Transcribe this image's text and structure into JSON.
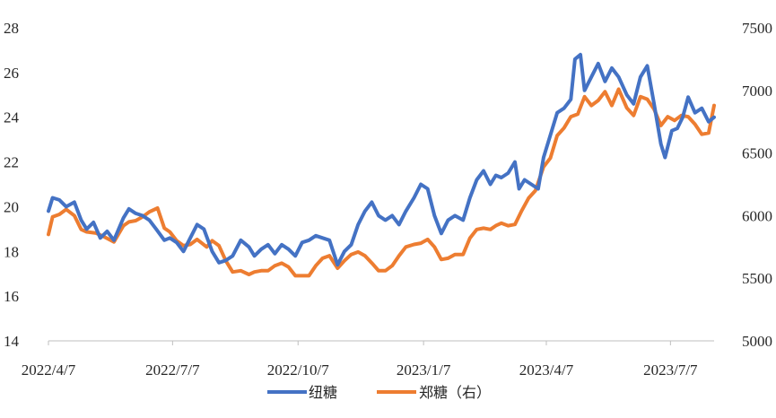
{
  "chart_data": {
    "type": "line",
    "title": "",
    "xlabel": "",
    "ylabel": "",
    "y2label": "",
    "x_ticks": [
      "2022/4/7",
      "2022/7/7",
      "2022/10/7",
      "2023/1/7",
      "2023/4/7",
      "2023/7/7"
    ],
    "y_left_ticks": [
      "14",
      "16",
      "18",
      "20",
      "22",
      "24",
      "26",
      "28"
    ],
    "y_right_ticks": [
      "5000",
      "5500",
      "6000",
      "6500",
      "7000",
      "7500"
    ],
    "ylim_left": [
      14,
      28
    ],
    "ylim_right": [
      5000,
      7500
    ],
    "legend_position": "bottom",
    "grid": false,
    "series": [
      {
        "name": "纽糖",
        "axis": "left",
        "color": "#4472C4",
        "points": [
          [
            "2022-04-07",
            19.8
          ],
          [
            "2022-04-10",
            20.4
          ],
          [
            "2022-04-15",
            20.3
          ],
          [
            "2022-04-20",
            20.0
          ],
          [
            "2022-04-26",
            20.2
          ],
          [
            "2022-05-01",
            19.4
          ],
          [
            "2022-05-05",
            19.0
          ],
          [
            "2022-05-10",
            19.3
          ],
          [
            "2022-05-15",
            18.6
          ],
          [
            "2022-05-20",
            18.9
          ],
          [
            "2022-05-25",
            18.5
          ],
          [
            "2022-06-01",
            19.5
          ],
          [
            "2022-06-05",
            19.9
          ],
          [
            "2022-06-10",
            19.7
          ],
          [
            "2022-06-15",
            19.6
          ],
          [
            "2022-06-20",
            19.4
          ],
          [
            "2022-06-25",
            19.0
          ],
          [
            "2022-07-01",
            18.5
          ],
          [
            "2022-07-05",
            18.6
          ],
          [
            "2022-07-10",
            18.4
          ],
          [
            "2022-07-15",
            18.0
          ],
          [
            "2022-07-20",
            18.6
          ],
          [
            "2022-07-25",
            19.2
          ],
          [
            "2022-07-30",
            19.0
          ],
          [
            "2022-08-05",
            18.0
          ],
          [
            "2022-08-10",
            17.5
          ],
          [
            "2022-08-15",
            17.6
          ],
          [
            "2022-08-20",
            17.8
          ],
          [
            "2022-08-26",
            18.5
          ],
          [
            "2022-09-01",
            18.2
          ],
          [
            "2022-09-05",
            17.8
          ],
          [
            "2022-09-10",
            18.1
          ],
          [
            "2022-09-15",
            18.3
          ],
          [
            "2022-09-20",
            17.9
          ],
          [
            "2022-09-25",
            18.3
          ],
          [
            "2022-09-30",
            18.1
          ],
          [
            "2022-10-05",
            17.8
          ],
          [
            "2022-10-10",
            18.4
          ],
          [
            "2022-10-15",
            18.5
          ],
          [
            "2022-10-20",
            18.7
          ],
          [
            "2022-10-25",
            18.6
          ],
          [
            "2022-10-30",
            18.5
          ],
          [
            "2022-11-05",
            17.4
          ],
          [
            "2022-11-10",
            18.0
          ],
          [
            "2022-11-15",
            18.3
          ],
          [
            "2022-11-20",
            19.2
          ],
          [
            "2022-11-25",
            19.8
          ],
          [
            "2022-11-30",
            20.2
          ],
          [
            "2022-12-05",
            19.6
          ],
          [
            "2022-12-10",
            19.4
          ],
          [
            "2022-12-15",
            19.6
          ],
          [
            "2022-12-20",
            19.2
          ],
          [
            "2022-12-25",
            19.8
          ],
          [
            "2022-12-31",
            20.4
          ],
          [
            "2023-01-05",
            21.0
          ],
          [
            "2023-01-10",
            20.8
          ],
          [
            "2023-01-15",
            19.6
          ],
          [
            "2023-01-20",
            18.8
          ],
          [
            "2023-01-25",
            19.4
          ],
          [
            "2023-01-30",
            19.6
          ],
          [
            "2023-02-05",
            19.4
          ],
          [
            "2023-02-10",
            20.4
          ],
          [
            "2023-02-15",
            21.2
          ],
          [
            "2023-02-20",
            21.6
          ],
          [
            "2023-02-25",
            21.0
          ],
          [
            "2023-03-01",
            21.4
          ],
          [
            "2023-03-05",
            21.3
          ],
          [
            "2023-03-10",
            21.5
          ],
          [
            "2023-03-15",
            22.0
          ],
          [
            "2023-03-18",
            20.8
          ],
          [
            "2023-03-22",
            21.2
          ],
          [
            "2023-03-27",
            21.0
          ],
          [
            "2023-04-01",
            20.8
          ],
          [
            "2023-04-05",
            22.2
          ],
          [
            "2023-04-10",
            23.2
          ],
          [
            "2023-04-15",
            24.2
          ],
          [
            "2023-04-20",
            24.4
          ],
          [
            "2023-04-25",
            24.8
          ],
          [
            "2023-04-28",
            26.6
          ],
          [
            "2023-05-02",
            26.8
          ],
          [
            "2023-05-05",
            25.2
          ],
          [
            "2023-05-10",
            25.8
          ],
          [
            "2023-05-15",
            26.4
          ],
          [
            "2023-05-20",
            25.6
          ],
          [
            "2023-05-25",
            26.2
          ],
          [
            "2023-05-30",
            25.8
          ],
          [
            "2023-06-05",
            25.0
          ],
          [
            "2023-06-10",
            24.6
          ],
          [
            "2023-06-15",
            25.8
          ],
          [
            "2023-06-20",
            26.3
          ],
          [
            "2023-06-25",
            24.6
          ],
          [
            "2023-06-30",
            22.8
          ],
          [
            "2023-07-03",
            22.2
          ],
          [
            "2023-07-08",
            23.4
          ],
          [
            "2023-07-12",
            23.5
          ],
          [
            "2023-07-16",
            24.0
          ],
          [
            "2023-07-20",
            24.9
          ],
          [
            "2023-07-25",
            24.2
          ],
          [
            "2023-07-30",
            24.4
          ],
          [
            "2023-08-04",
            23.8
          ],
          [
            "2023-08-08",
            24.0
          ]
        ]
      },
      {
        "name": "郑糖（右）",
        "axis": "right",
        "color": "#ED7D31",
        "points": [
          [
            "2022-04-07",
            5850
          ],
          [
            "2022-04-10",
            5990
          ],
          [
            "2022-04-15",
            6010
          ],
          [
            "2022-04-20",
            6050
          ],
          [
            "2022-04-26",
            6000
          ],
          [
            "2022-05-01",
            5890
          ],
          [
            "2022-05-05",
            5870
          ],
          [
            "2022-05-12",
            5860
          ],
          [
            "2022-05-18",
            5830
          ],
          [
            "2022-05-25",
            5790
          ],
          [
            "2022-06-01",
            5920
          ],
          [
            "2022-06-05",
            5950
          ],
          [
            "2022-06-10",
            5960
          ],
          [
            "2022-06-15",
            5990
          ],
          [
            "2022-06-20",
            6030
          ],
          [
            "2022-06-26",
            6060
          ],
          [
            "2022-07-01",
            5900
          ],
          [
            "2022-07-05",
            5870
          ],
          [
            "2022-07-10",
            5800
          ],
          [
            "2022-07-15",
            5760
          ],
          [
            "2022-07-20",
            5770
          ],
          [
            "2022-07-25",
            5810
          ],
          [
            "2022-08-01",
            5750
          ],
          [
            "2022-08-05",
            5800
          ],
          [
            "2022-08-10",
            5760
          ],
          [
            "2022-08-15",
            5640
          ],
          [
            "2022-08-20",
            5550
          ],
          [
            "2022-08-26",
            5560
          ],
          [
            "2022-09-01",
            5530
          ],
          [
            "2022-09-05",
            5550
          ],
          [
            "2022-09-10",
            5560
          ],
          [
            "2022-09-15",
            5560
          ],
          [
            "2022-09-20",
            5600
          ],
          [
            "2022-09-25",
            5620
          ],
          [
            "2022-09-30",
            5590
          ],
          [
            "2022-10-05",
            5520
          ],
          [
            "2022-10-10",
            5520
          ],
          [
            "2022-10-15",
            5520
          ],
          [
            "2022-10-20",
            5600
          ],
          [
            "2022-10-25",
            5660
          ],
          [
            "2022-10-30",
            5680
          ],
          [
            "2022-11-05",
            5580
          ],
          [
            "2022-11-10",
            5640
          ],
          [
            "2022-11-15",
            5690
          ],
          [
            "2022-11-20",
            5710
          ],
          [
            "2022-11-25",
            5680
          ],
          [
            "2022-12-01",
            5610
          ],
          [
            "2022-12-05",
            5560
          ],
          [
            "2022-12-10",
            5560
          ],
          [
            "2022-12-15",
            5600
          ],
          [
            "2022-12-20",
            5680
          ],
          [
            "2022-12-25",
            5750
          ],
          [
            "2022-12-31",
            5770
          ],
          [
            "2023-01-05",
            5780
          ],
          [
            "2023-01-10",
            5810
          ],
          [
            "2023-01-15",
            5750
          ],
          [
            "2023-01-20",
            5650
          ],
          [
            "2023-01-25",
            5660
          ],
          [
            "2023-01-30",
            5690
          ],
          [
            "2023-02-05",
            5690
          ],
          [
            "2023-02-10",
            5820
          ],
          [
            "2023-02-15",
            5890
          ],
          [
            "2023-02-20",
            5900
          ],
          [
            "2023-02-25",
            5890
          ],
          [
            "2023-03-01",
            5920
          ],
          [
            "2023-03-05",
            5940
          ],
          [
            "2023-03-10",
            5920
          ],
          [
            "2023-03-15",
            5930
          ],
          [
            "2023-03-20",
            6040
          ],
          [
            "2023-03-25",
            6140
          ],
          [
            "2023-03-30",
            6200
          ],
          [
            "2023-04-05",
            6390
          ],
          [
            "2023-04-10",
            6460
          ],
          [
            "2023-04-15",
            6640
          ],
          [
            "2023-04-20",
            6700
          ],
          [
            "2023-04-25",
            6790
          ],
          [
            "2023-04-30",
            6810
          ],
          [
            "2023-05-05",
            6950
          ],
          [
            "2023-05-10",
            6880
          ],
          [
            "2023-05-15",
            6920
          ],
          [
            "2023-05-20",
            6990
          ],
          [
            "2023-05-25",
            6880
          ],
          [
            "2023-05-30",
            7010
          ],
          [
            "2023-06-05",
            6860
          ],
          [
            "2023-06-10",
            6800
          ],
          [
            "2023-06-15",
            6950
          ],
          [
            "2023-06-20",
            6930
          ],
          [
            "2023-06-25",
            6850
          ],
          [
            "2023-06-30",
            6720
          ],
          [
            "2023-07-05",
            6790
          ],
          [
            "2023-07-10",
            6760
          ],
          [
            "2023-07-15",
            6800
          ],
          [
            "2023-07-20",
            6790
          ],
          [
            "2023-07-25",
            6730
          ],
          [
            "2023-07-30",
            6650
          ],
          [
            "2023-08-04",
            6660
          ],
          [
            "2023-08-08",
            6880
          ]
        ]
      }
    ]
  }
}
